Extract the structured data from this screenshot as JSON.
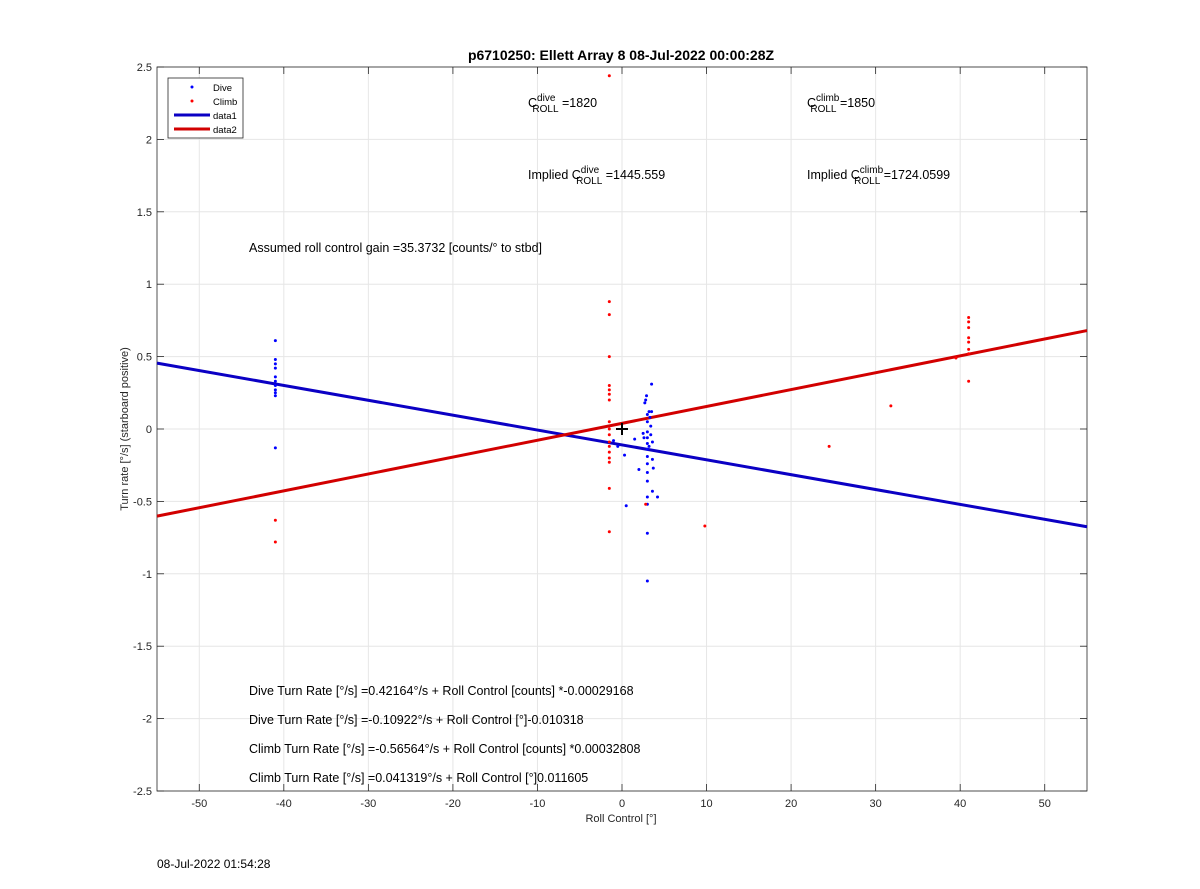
{
  "chart_data": {
    "type": "scatter",
    "title": "p6710250: Ellett Array 8 08-Jul-2022 00:00:28Z",
    "xlabel": "Roll Control [°]",
    "ylabel": "Turn rate [°/s] (starboard positive)",
    "xlim": [
      -55,
      55
    ],
    "ylim": [
      -2.5,
      2.5
    ],
    "xticks": [
      -50,
      -40,
      -30,
      -20,
      -10,
      0,
      10,
      20,
      30,
      40,
      50
    ],
    "yticks": [
      -2.5,
      -2,
      -1.5,
      -1,
      -0.5,
      0,
      0.5,
      1,
      1.5,
      2,
      2.5
    ],
    "xtick_labels": [
      "-50",
      "-40",
      "-30",
      "-20",
      "-10",
      "0",
      "10",
      "20",
      "30",
      "40",
      "50"
    ],
    "ytick_labels": [
      "-2.5",
      "-2",
      "-1.5",
      "-1",
      "-0.5",
      "0",
      "0.5",
      "1",
      "1.5",
      "2",
      "2.5"
    ],
    "grid": true,
    "legend_position": "top-left",
    "series": [
      {
        "name": "Dive",
        "kind": "points",
        "color": "#0000ff",
        "points": [
          [
            -41,
            0.61
          ],
          [
            -41,
            0.48
          ],
          [
            -41,
            0.45
          ],
          [
            -41,
            0.42
          ],
          [
            -41,
            0.36
          ],
          [
            -41,
            0.33
          ],
          [
            -41,
            0.3
          ],
          [
            -41,
            0.27
          ],
          [
            -41,
            0.25
          ],
          [
            -41,
            0.23
          ],
          [
            -41,
            -0.13
          ],
          [
            -1,
            -0.08
          ],
          [
            -0.5,
            -0.12
          ],
          [
            0.3,
            -0.18
          ],
          [
            0.5,
            -0.53
          ],
          [
            1.5,
            -0.07
          ],
          [
            2,
            -0.28
          ],
          [
            2.5,
            -0.03
          ],
          [
            2.7,
            0.18
          ],
          [
            2.8,
            0.2
          ],
          [
            2.9,
            0.23
          ],
          [
            3,
            0.1
          ],
          [
            3,
            0.05
          ],
          [
            3,
            -0.02
          ],
          [
            3,
            -0.06
          ],
          [
            3,
            -0.1
          ],
          [
            3,
            -0.14
          ],
          [
            3,
            -0.19
          ],
          [
            3,
            -0.24
          ],
          [
            3,
            -0.3
          ],
          [
            3,
            -0.36
          ],
          [
            3,
            -0.47
          ],
          [
            3,
            -0.52
          ],
          [
            3,
            -0.72
          ],
          [
            3,
            -1.05
          ],
          [
            3.2,
            0.12
          ],
          [
            3.3,
            0.08
          ],
          [
            3.4,
            0.02
          ],
          [
            3.4,
            -0.04
          ],
          [
            3.5,
            0.31
          ],
          [
            3.5,
            0.12
          ],
          [
            3.6,
            -0.09
          ],
          [
            3.6,
            -0.21
          ],
          [
            3.7,
            -0.27
          ],
          [
            3.6,
            -0.43
          ],
          [
            4.2,
            -0.47
          ],
          [
            3.2,
            -0.12
          ],
          [
            2.6,
            -0.06
          ]
        ]
      },
      {
        "name": "Climb",
        "kind": "points",
        "color": "#ff0000",
        "points": [
          [
            -1.5,
            2.44
          ],
          [
            -1.5,
            0.88
          ],
          [
            -1.5,
            0.79
          ],
          [
            -1.5,
            0.5
          ],
          [
            -1.5,
            0.3
          ],
          [
            -1.5,
            0.27
          ],
          [
            -1.5,
            0.24
          ],
          [
            -1.5,
            0.2
          ],
          [
            -1.5,
            0.05
          ],
          [
            -1.5,
            0.0
          ],
          [
            -1.5,
            -0.04
          ],
          [
            -1.5,
            -0.09
          ],
          [
            -1.5,
            -0.12
          ],
          [
            -1.5,
            -0.16
          ],
          [
            -1.5,
            -0.2
          ],
          [
            -1.5,
            -0.23
          ],
          [
            -1.5,
            -0.41
          ],
          [
            -1.5,
            -0.71
          ],
          [
            -41,
            -0.63
          ],
          [
            -41,
            -0.78
          ],
          [
            2.8,
            -0.52
          ],
          [
            9.8,
            -0.67
          ],
          [
            24.5,
            -0.12
          ],
          [
            31.8,
            0.16
          ],
          [
            41,
            0.77
          ],
          [
            41,
            0.74
          ],
          [
            41,
            0.7
          ],
          [
            41,
            0.63
          ],
          [
            41,
            0.6
          ],
          [
            41,
            0.55
          ],
          [
            41,
            0.52
          ],
          [
            41,
            0.33
          ],
          [
            39.5,
            0.49
          ]
        ]
      },
      {
        "name": "data1",
        "kind": "line",
        "color": "#0b00c4",
        "x": [
          -55,
          55
        ],
        "y": [
          0.4549,
          -0.6748
        ]
      },
      {
        "name": "data2",
        "kind": "line",
        "color": "#d20000",
        "x": [
          -55,
          55
        ],
        "y": [
          -0.6019,
          0.68
        ]
      }
    ],
    "marker": {
      "x": 0,
      "y": 0,
      "symbol": "+"
    },
    "annotations": {
      "c_dive": {
        "pre": "C",
        "sup": "dive",
        "sub": "ROLL",
        "post": " =1820"
      },
      "c_climb": {
        "pre": "C",
        "sup": "climb",
        "sub": "ROLL",
        "post": " =1850"
      },
      "implied_dive": {
        "pre": "Implied C",
        "sup": "dive",
        "sub": "ROLL",
        "post": " =1445.559"
      },
      "implied_climb": {
        "pre": "Implied C",
        "sup": "climb",
        "sub": "ROLL",
        "post": " =1724.0599"
      },
      "gain": "Assumed roll control gain =35.3732 [counts/° to stbd]",
      "equations": [
        "Dive Turn Rate [°/s] =0.42164°/s + Roll Control [counts] *-0.00029168",
        "Dive Turn Rate [°/s] =-0.10922°/s + Roll Control [°]-0.010318",
        "Climb Turn Rate [°/s] =-0.56564°/s + Roll Control [counts] *0.00032808",
        "Climb Turn Rate [°/s] =0.041319°/s + Roll Control [°]0.011605"
      ]
    }
  },
  "footer": {
    "timestamp": "08-Jul-2022 01:54:28"
  }
}
